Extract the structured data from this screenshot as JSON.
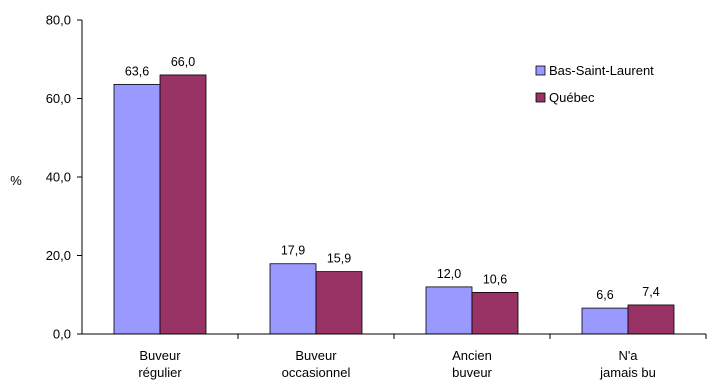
{
  "chart_data": {
    "type": "bar",
    "title": "",
    "xlabel": "",
    "ylabel": "%",
    "ylim": [
      0,
      80
    ],
    "yticks": [
      "0,0",
      "20,0",
      "40,0",
      "60,0",
      "80,0"
    ],
    "categories": [
      [
        "Buveur",
        "régulier"
      ],
      [
        "Buveur",
        "occasionnel"
      ],
      [
        "Ancien",
        "buveur"
      ],
      [
        "N'a",
        "jamais bu"
      ]
    ],
    "series": [
      {
        "name": "Bas-Saint-Laurent",
        "color": "#9999FF",
        "values": [
          63.6,
          17.9,
          12.0,
          6.6
        ],
        "labels": [
          "63,6",
          "17,9",
          "12,0",
          "6,6"
        ]
      },
      {
        "name": "Québec",
        "color": "#993366",
        "values": [
          66.0,
          15.9,
          10.6,
          7.4
        ],
        "labels": [
          "66,0",
          "15,9",
          "10,6",
          "7,4"
        ]
      }
    ],
    "legend_position": "right",
    "grid": false
  }
}
